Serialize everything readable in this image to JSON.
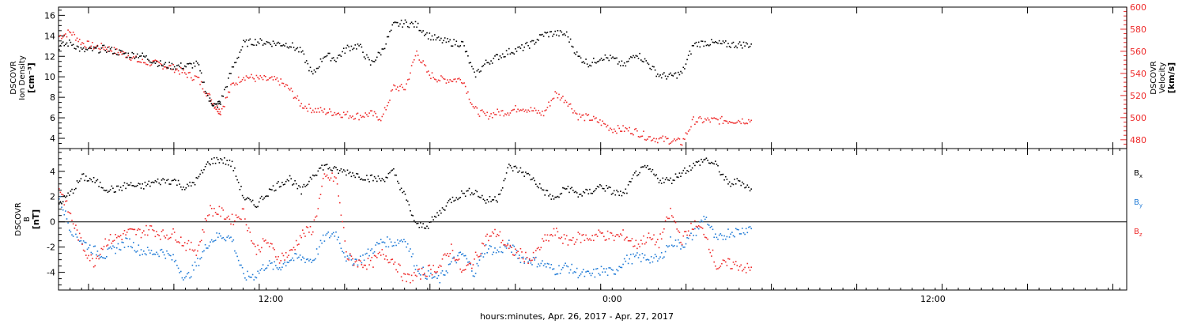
{
  "chart_data": [
    {
      "type": "scatter",
      "panel": "top",
      "ylabel_left": [
        "DSCOVR",
        "Ion Density"
      ],
      "ylabel_left_unit": "[cm⁻³]",
      "ylabel_right": [
        "DSCOVR",
        "Velocity"
      ],
      "ylabel_right_unit": "[km/s]",
      "ylim_left": [
        3.0,
        16.8
      ],
      "yticks_left": [
        4,
        6,
        8,
        10,
        12,
        14,
        16
      ],
      "ylim_right": [
        472,
        600
      ],
      "yticks_right": [
        480,
        500,
        520,
        540,
        560,
        580,
        600
      ],
      "xlim_hours": [
        0,
        46.3
      ],
      "series": [
        {
          "axis": "left",
          "color": "#000000",
          "x_hours": [
            0,
            0.5,
            1,
            1.5,
            2,
            2.5,
            3,
            3.5,
            4,
            4.5,
            5,
            5.5,
            6,
            6.5,
            6.8,
            7,
            7.5,
            8,
            8.5,
            9,
            9.5,
            10,
            10.5,
            11,
            11.5,
            12,
            12.5,
            13,
            13.5,
            14,
            14.5,
            15,
            15.5,
            16,
            16.5,
            17,
            17.5,
            18,
            18.5,
            19,
            19.5,
            20,
            20.5,
            21,
            21.5,
            22,
            22.5,
            23,
            23.5,
            24,
            24.5,
            25,
            25.5,
            26,
            26.5,
            27,
            27.5,
            28,
            28.5,
            29,
            29.5,
            30
          ],
          "values": [
            13.0,
            13.4,
            12.6,
            12.7,
            12.8,
            12.5,
            12.2,
            12.2,
            11.7,
            11.2,
            11.1,
            11.1,
            11.3,
            7.8,
            7.2,
            7.6,
            10.8,
            13.3,
            13.5,
            13.4,
            13.3,
            13.2,
            12.5,
            10.2,
            12.2,
            11.8,
            12.9,
            13.1,
            11.3,
            12.6,
            15.1,
            15.3,
            15.1,
            14.1,
            13.6,
            13.4,
            13.3,
            10.2,
            11.4,
            12.0,
            12.5,
            12.8,
            13.3,
            14.2,
            14.3,
            14.2,
            12.0,
            11.3,
            12.0,
            11.8,
            11.1,
            12.4,
            11.4,
            10.2,
            10.1,
            10.4,
            13.2,
            13.4,
            13.3,
            13.2,
            13.2,
            13.2
          ]
        },
        {
          "axis": "right",
          "color": "#ee2a2a",
          "x_hours": [
            0,
            0.5,
            1,
            1.5,
            2,
            2.5,
            3,
            3.5,
            4,
            4.5,
            5,
            5.5,
            6,
            6.5,
            6.8,
            7,
            7.5,
            8,
            8.5,
            9,
            9.5,
            10,
            10.5,
            11,
            11.5,
            12,
            12.5,
            13,
            13.5,
            14,
            14.5,
            15,
            15.5,
            16,
            16.5,
            17,
            17.5,
            18,
            18.5,
            19,
            19.5,
            20,
            20.5,
            21,
            21.5,
            22,
            22.5,
            23,
            23.5,
            24,
            24.5,
            25,
            25.5,
            26,
            26.5,
            27,
            27.5,
            28,
            28.5,
            29,
            29.5,
            30
          ],
          "values": [
            574,
            578,
            568,
            565,
            564,
            560,
            557,
            551,
            550,
            548,
            545,
            540,
            536,
            520,
            510,
            506,
            530,
            538,
            536,
            535,
            534,
            526,
            512,
            508,
            506,
            505,
            503,
            502,
            504,
            500,
            528,
            527,
            560,
            540,
            535,
            535,
            535,
            508,
            502,
            505,
            506,
            510,
            507,
            504,
            522,
            516,
            502,
            500,
            496,
            490,
            490,
            488,
            483,
            481,
            480,
            478,
            498,
            498,
            498,
            498,
            498,
            498
          ]
        }
      ]
    },
    {
      "type": "scatter",
      "panel": "bottom",
      "ylabel": [
        "DSCOVR",
        "B"
      ],
      "ylabel_unit": "[nT]",
      "ylim": [
        -5.4,
        5.8
      ],
      "yticks": [
        -4,
        -2,
        0,
        2,
        4
      ],
      "zero_line": true,
      "xlim_hours": [
        0,
        46.3
      ],
      "xticks": [
        "12:00",
        "0:00",
        "12:00"
      ],
      "xticks_hours": [
        9.2,
        24.0,
        37.9
      ],
      "xlabel": "hours:minutes, Apr. 26, 2017 - Apr. 27, 2017",
      "legend": [
        {
          "label": "B",
          "sub": "x",
          "color": "#000000"
        },
        {
          "label": "B",
          "sub": "y",
          "color": "#1f7ad6"
        },
        {
          "label": "B",
          "sub": "z",
          "color": "#ee2a2a"
        }
      ],
      "series": [
        {
          "name": "Bx",
          "color": "#000000",
          "x_hours": [
            0,
            0.5,
            1,
            1.5,
            2,
            2.5,
            3,
            3.5,
            4,
            4.5,
            5,
            5.5,
            6,
            6.5,
            7,
            7.5,
            8,
            8.5,
            9,
            9.5,
            10,
            10.5,
            11,
            11.5,
            12,
            12.5,
            13,
            13.5,
            14,
            14.5,
            15,
            15.5,
            16,
            16.5,
            17,
            17.5,
            18,
            18.5,
            19,
            19.5,
            20,
            20.5,
            21,
            21.5,
            22,
            22.5,
            23,
            23.5,
            24,
            24.5,
            25,
            25.5,
            26,
            26.5,
            27,
            27.5,
            28,
            28.5,
            29,
            29.5,
            30
          ],
          "values": [
            1.5,
            2.3,
            3.6,
            3.3,
            2.7,
            2.6,
            3.0,
            2.8,
            3.1,
            3.3,
            3.3,
            2.7,
            3.4,
            4.8,
            5.0,
            4.6,
            2.0,
            1.3,
            2.3,
            3.0,
            3.5,
            2.4,
            3.8,
            4.5,
            4.1,
            4.0,
            3.7,
            3.5,
            3.4,
            4.0,
            2.0,
            -0.3,
            -0.2,
            0.8,
            1.8,
            2.3,
            2.5,
            1.7,
            1.9,
            4.4,
            4.1,
            3.5,
            2.5,
            1.8,
            2.8,
            2.2,
            2.4,
            2.9,
            2.4,
            2.2,
            3.9,
            4.3,
            3.4,
            3.3,
            4.0,
            4.5,
            5.0,
            4.5,
            3.0,
            3.3,
            2.6
          ]
        },
        {
          "name": "By",
          "color": "#1f7ad6",
          "x_hours": [
            0,
            0.5,
            1,
            1.5,
            2,
            2.5,
            3,
            3.5,
            4,
            4.5,
            5,
            5.5,
            6,
            6.5,
            7,
            7.5,
            8,
            8.5,
            9,
            9.5,
            10,
            10.5,
            11,
            11.5,
            12,
            12.5,
            13,
            13.5,
            14,
            14.5,
            15,
            15.5,
            16,
            16.5,
            17,
            17.5,
            18,
            18.5,
            19,
            19.5,
            20,
            20.5,
            21,
            21.5,
            22,
            22.5,
            23,
            23.5,
            24,
            24.5,
            25,
            25.5,
            26,
            26.5,
            27,
            27.5,
            28,
            28.5,
            29,
            29.5,
            30
          ],
          "values": [
            2.0,
            -0.5,
            -1.5,
            -2.2,
            -2.6,
            -2.0,
            -1.5,
            -2.2,
            -2.4,
            -2.3,
            -3.0,
            -4.5,
            -3.2,
            -1.5,
            -1.0,
            -1.3,
            -4.3,
            -4.2,
            -3.3,
            -3.6,
            -2.9,
            -2.8,
            -3.0,
            -1.2,
            -0.8,
            -3.0,
            -3.0,
            -2.3,
            -1.5,
            -1.6,
            -1.3,
            -3.6,
            -4.2,
            -4.5,
            -3.2,
            -2.5,
            -4.0,
            -2.0,
            -2.3,
            -1.8,
            -2.8,
            -3.0,
            -3.3,
            -3.8,
            -3.5,
            -4.0,
            -4.2,
            -3.8,
            -4.0,
            -3.0,
            -2.8,
            -2.8,
            -3.0,
            -1.5,
            -1.8,
            -1.0,
            0.5,
            -1.5,
            -0.8,
            -0.7,
            -0.4
          ]
        },
        {
          "name": "Bz",
          "color": "#ee2a2a",
          "x_hours": [
            0,
            0.5,
            1,
            1.5,
            2,
            2.5,
            3,
            3.5,
            4,
            4.5,
            5,
            5.5,
            6,
            6.5,
            7,
            7.5,
            8,
            8.5,
            9,
            9.5,
            10,
            10.5,
            11,
            11.5,
            12,
            12.5,
            13,
            13.5,
            14,
            14.5,
            15,
            15.5,
            16,
            16.5,
            17,
            17.5,
            18,
            18.5,
            19,
            19.5,
            20,
            20.5,
            21,
            21.5,
            22,
            22.5,
            23,
            23.5,
            24,
            24.5,
            25,
            25.5,
            26,
            26.5,
            27,
            27.5,
            28,
            28.5,
            29,
            29.5,
            30
          ],
          "values": [
            2.8,
            0.5,
            -1.8,
            -3.2,
            -1.5,
            -1.2,
            -0.8,
            -0.8,
            -0.5,
            -1.0,
            -0.9,
            -1.8,
            -2.2,
            1.0,
            0.8,
            0.2,
            0.8,
            -2.2,
            -1.5,
            -2.8,
            -2.5,
            -1.0,
            -0.5,
            3.5,
            3.5,
            -2.8,
            -3.2,
            -3.3,
            -2.5,
            -3.0,
            -4.5,
            -4.2,
            -3.8,
            -3.5,
            -2.0,
            -4.0,
            -3.0,
            -1.3,
            -0.8,
            -2.2,
            -2.5,
            -3.0,
            -1.5,
            -0.8,
            -1.5,
            -1.2,
            -1.2,
            -0.9,
            -1.2,
            -1.0,
            -1.8,
            -1.2,
            -1.6,
            0.8,
            -1.4,
            -0.2,
            -0.8,
            -3.5,
            -3.3,
            -3.4,
            -3.8
          ]
        }
      ]
    }
  ]
}
